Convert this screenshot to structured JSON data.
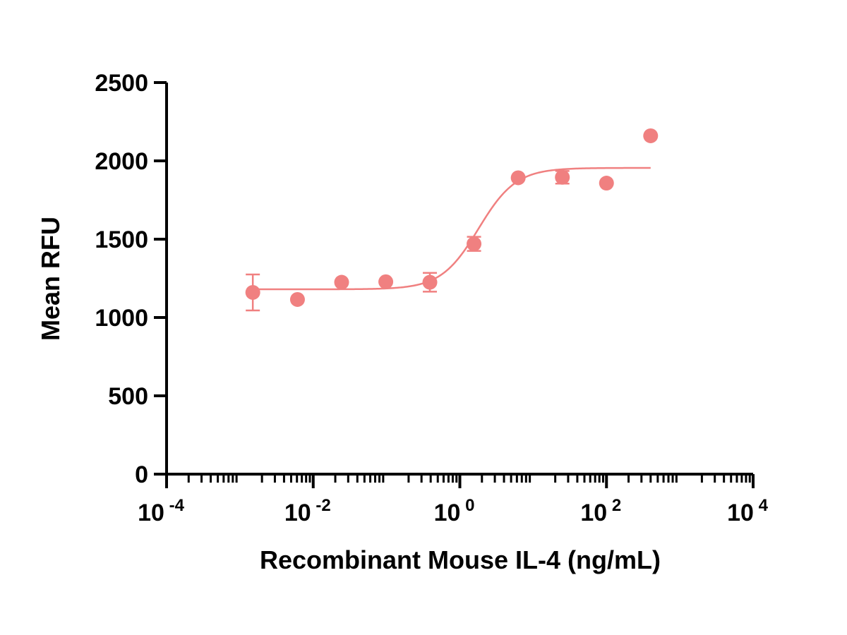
{
  "colors": {
    "series": "#f08080",
    "axis": "#000000"
  },
  "chart_data": {
    "type": "scatter",
    "title": "",
    "xlabel": "Recombinant Mouse IL-4 (ng/mL)",
    "ylabel": "Mean RFU",
    "x_scale": "log",
    "xlim": [
      0.0001,
      10000
    ],
    "ylim": [
      0,
      2500
    ],
    "x_ticks": [
      {
        "value": 0.0001,
        "base": "10",
        "exp": "-4"
      },
      {
        "value": 0.01,
        "base": "10",
        "exp": "-2"
      },
      {
        "value": 1,
        "base": "10",
        "exp": "0"
      },
      {
        "value": 100,
        "base": "10",
        "exp": "2"
      },
      {
        "value": 10000,
        "base": "10",
        "exp": "4"
      }
    ],
    "y_ticks": [
      0,
      500,
      1000,
      1500,
      2000,
      2500
    ],
    "grid": false,
    "legend": "none",
    "points": [
      {
        "x": 0.0015,
        "y": 1160,
        "err": 115
      },
      {
        "x": 0.0061,
        "y": 1115,
        "err": 0
      },
      {
        "x": 0.0244,
        "y": 1225,
        "err": 0
      },
      {
        "x": 0.0977,
        "y": 1228,
        "err": 0
      },
      {
        "x": 0.39,
        "y": 1225,
        "err": 60
      },
      {
        "x": 1.56,
        "y": 1470,
        "err": 45
      },
      {
        "x": 6.25,
        "y": 1892,
        "err": 0
      },
      {
        "x": 25,
        "y": 1895,
        "err": 40
      },
      {
        "x": 100,
        "y": 1858,
        "err": 0
      },
      {
        "x": 400,
        "y": 2160,
        "err": 0
      }
    ],
    "fit": {
      "model": "4PL",
      "bottom": 1180,
      "top": 1955,
      "ec50": 1.8,
      "hill": 1.7,
      "x_range": [
        0.0015,
        400
      ]
    }
  }
}
